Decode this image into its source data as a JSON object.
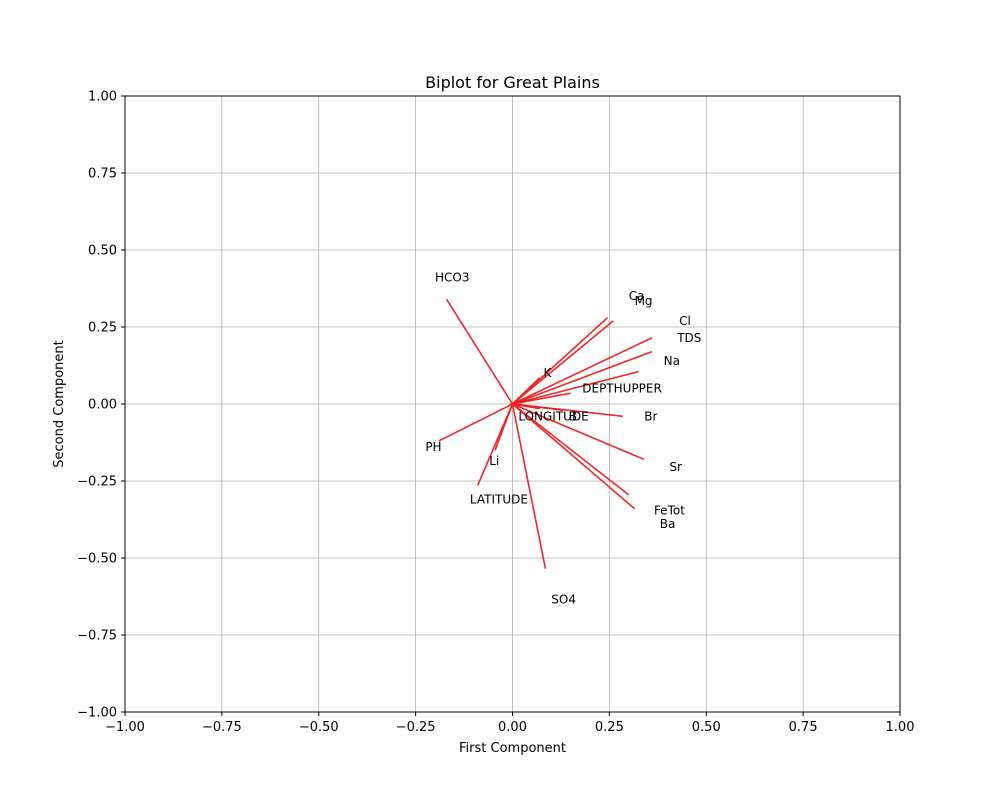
{
  "chart_data": {
    "type": "biplot",
    "title": "Biplot for Great Plains",
    "xlabel": "First Component",
    "ylabel": "Second Component",
    "xlim": [
      -1.0,
      1.0
    ],
    "ylim": [
      -1.0,
      1.0
    ],
    "xticks": [
      -1.0,
      -0.75,
      -0.5,
      -0.25,
      0.0,
      0.25,
      0.5,
      0.75,
      1.0
    ],
    "yticks": [
      -1.0,
      -0.75,
      -0.5,
      -0.25,
      0.0,
      0.25,
      0.5,
      0.75,
      1.0
    ],
    "xtick_labels": [
      "−1.00",
      "−0.75",
      "−0.50",
      "−0.25",
      "0.00",
      "0.25",
      "0.50",
      "0.75",
      "1.00"
    ],
    "ytick_labels": [
      "−1.00",
      "−0.75",
      "−0.50",
      "−0.25",
      "0.00",
      "0.25",
      "0.50",
      "0.75",
      "1.00"
    ],
    "grid": true,
    "arrow_color": "#ee1c1c",
    "loadings": [
      {
        "label": "HCO3",
        "x": -0.17,
        "y": 0.34,
        "label_x": -0.2,
        "label_y": 0.41
      },
      {
        "label": "Ca",
        "x": 0.245,
        "y": 0.28,
        "label_x": 0.3,
        "label_y": 0.35
      },
      {
        "label": "Mg",
        "x": 0.26,
        "y": 0.27,
        "label_x": 0.315,
        "label_y": 0.335
      },
      {
        "label": "Cl",
        "x": 0.36,
        "y": 0.215,
        "label_x": 0.43,
        "label_y": 0.27
      },
      {
        "label": "TDS",
        "x": 0.36,
        "y": 0.17,
        "label_x": 0.425,
        "label_y": 0.215
      },
      {
        "label": "Na",
        "x": 0.325,
        "y": 0.105,
        "label_x": 0.39,
        "label_y": 0.14
      },
      {
        "label": "K",
        "x": 0.07,
        "y": 0.085,
        "label_x": 0.08,
        "label_y": 0.1
      },
      {
        "label": "DEPTHUPPER",
        "x": 0.15,
        "y": 0.035,
        "label_x": 0.18,
        "label_y": 0.05
      },
      {
        "label": "LONGITUDE",
        "x": 0.07,
        "y": -0.015,
        "label_x": 0.015,
        "label_y": -0.04
      },
      {
        "label": "B",
        "x": 0.13,
        "y": -0.02,
        "label_x": 0.145,
        "label_y": -0.04
      },
      {
        "label": "Br",
        "x": 0.285,
        "y": -0.04,
        "label_x": 0.34,
        "label_y": -0.04
      },
      {
        "label": "PH",
        "x": -0.19,
        "y": -0.12,
        "label_x": -0.225,
        "label_y": -0.14
      },
      {
        "label": "Li",
        "x": -0.045,
        "y": -0.15,
        "label_x": -0.06,
        "label_y": -0.185
      },
      {
        "label": "LATITUDE",
        "x": -0.09,
        "y": -0.265,
        "label_x": -0.11,
        "label_y": -0.31
      },
      {
        "label": "Sr",
        "x": 0.34,
        "y": -0.18,
        "label_x": 0.405,
        "label_y": -0.205
      },
      {
        "label": "FeTot",
        "x": 0.3,
        "y": -0.295,
        "label_x": 0.365,
        "label_y": -0.345
      },
      {
        "label": "Ba",
        "x": 0.315,
        "y": -0.34,
        "label_x": 0.38,
        "label_y": -0.39
      },
      {
        "label": "SO4",
        "x": 0.085,
        "y": -0.535,
        "label_x": 0.1,
        "label_y": -0.635
      }
    ]
  }
}
